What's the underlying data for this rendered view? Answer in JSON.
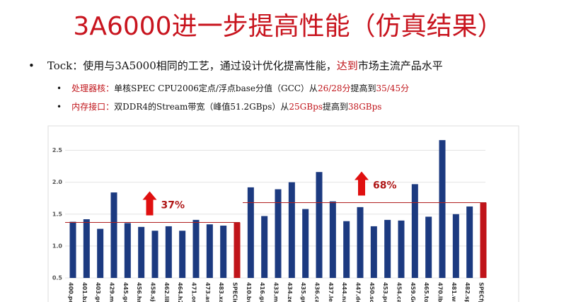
{
  "slide": {
    "title": "3A6000进一步提高性能（仿真结果）",
    "bullets": [
      {
        "parts": [
          {
            "text": "Tock：使用与3A5000相同的工艺，通过设计优化提高性能，",
            "red": false
          },
          {
            "text": "达到",
            "red": true
          },
          {
            "text": "市场主流产品水平",
            "red": false
          }
        ],
        "sub": [
          {
            "parts": [
              {
                "text": "处理器核：",
                "red": true
              },
              {
                "text": "单核SPEC CPU2006定点/浮点base分值（GCC）从",
                "red": false
              },
              {
                "text": "26/28分",
                "red": true
              },
              {
                "text": "提高到",
                "red": false
              },
              {
                "text": "35/45分",
                "red": true
              }
            ]
          },
          {
            "parts": [
              {
                "text": "内存接口：",
                "red": true
              },
              {
                "text": "双DDR4的Stream带宽（峰值51.2GBps）从",
                "red": false
              },
              {
                "text": "25GBps",
                "red": true
              },
              {
                "text": "提高到",
                "red": false
              },
              {
                "text": "38GBps",
                "red": true
              }
            ]
          }
        ]
      }
    ]
  },
  "chart_data": {
    "type": "bar",
    "categories": [
      "400.pe",
      "401.bzi",
      "403.gc",
      "429.mc",
      "445.go",
      "456.hn",
      "458.sje",
      "462.lib",
      "464.h2",
      "471.om",
      "473.ast",
      "483.xal",
      "SPECin",
      "410.bw",
      "416.ga",
      "433.mi",
      "434.ze",
      "435.gr",
      "436.ca",
      "437.les",
      "444.na",
      "447.de",
      "450.so",
      "453.po",
      "454.ca",
      "459.Ge",
      "465.to",
      "470.lb",
      "481.wr",
      "482.sp",
      "SPECfp"
    ],
    "values": [
      1.38,
      1.42,
      1.27,
      1.84,
      1.36,
      1.3,
      1.24,
      1.31,
      1.24,
      1.41,
      1.34,
      1.32,
      1.37,
      1.92,
      1.47,
      1.89,
      2.0,
      1.58,
      2.16,
      1.7,
      1.39,
      1.61,
      1.31,
      1.41,
      1.4,
      1.97,
      1.46,
      2.66,
      1.5,
      1.62,
      1.68
    ],
    "colors": [
      "#1c3a80",
      "#1c3a80",
      "#1c3a80",
      "#1c3a80",
      "#1c3a80",
      "#1c3a80",
      "#1c3a80",
      "#1c3a80",
      "#1c3a80",
      "#1c3a80",
      "#1c3a80",
      "#1c3a80",
      "#c0141a",
      "#1c3a80",
      "#1c3a80",
      "#1c3a80",
      "#1c3a80",
      "#1c3a80",
      "#1c3a80",
      "#1c3a80",
      "#1c3a80",
      "#1c3a80",
      "#1c3a80",
      "#1c3a80",
      "#1c3a80",
      "#1c3a80",
      "#1c3a80",
      "#1c3a80",
      "#1c3a80",
      "#1c3a80",
      "#c0141a"
    ],
    "annotations": [
      "37%",
      "68%"
    ],
    "ylim": [
      0.5,
      2.75
    ],
    "yticks": [
      0.5,
      {
        "value": 1.0,
        "label": "1.0"
      },
      1.5,
      {
        "value": 2.0,
        "label": "2.0"
      },
      2.5
    ],
    "grid": true
  }
}
